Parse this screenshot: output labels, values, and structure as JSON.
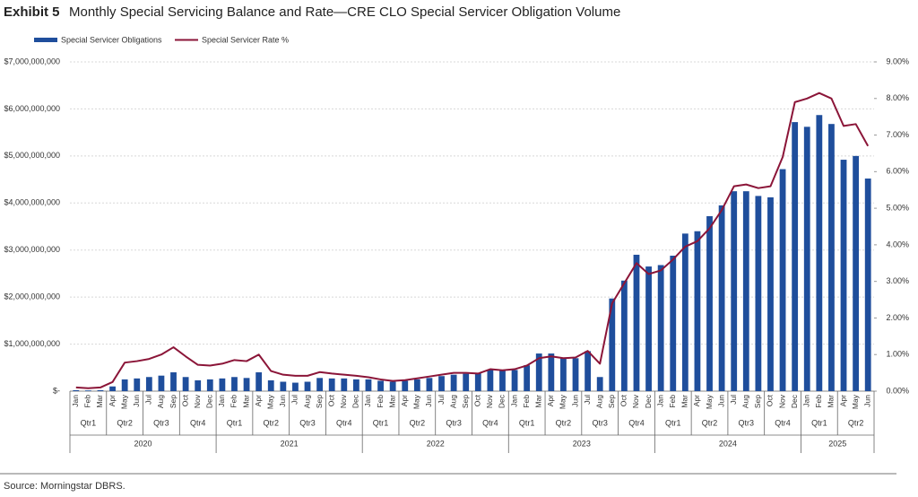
{
  "chart_data": {
    "type": "bar-line",
    "label": "Exhibit 5",
    "title": "Monthly Special Servicing Balance and Rate—CRE CLO Special Servicer Obligation Volume",
    "source": "Source: Morningstar DBRS.",
    "categories": [
      "Jan",
      "Feb",
      "Mar",
      "Apr",
      "May",
      "Jun",
      "Jul",
      "Aug",
      "Sep",
      "Oct",
      "Nov",
      "Dec",
      "Jan",
      "Feb",
      "Mar",
      "Apr",
      "May",
      "Jun",
      "Jul",
      "Aug",
      "Sep",
      "Oct",
      "Nov",
      "Dec",
      "Jan",
      "Feb",
      "Mar",
      "Apr",
      "May",
      "Jun",
      "Jul",
      "Aug",
      "Sep",
      "Oct",
      "Nov",
      "Dec",
      "Jan",
      "Feb",
      "Mar",
      "Apr",
      "May",
      "Jun",
      "Jul",
      "Aug",
      "Sep",
      "Oct",
      "Nov",
      "Dec",
      "Jan",
      "Feb",
      "Mar",
      "Apr",
      "May",
      "Jun",
      "Jul",
      "Aug",
      "Sep",
      "Oct",
      "Nov",
      "Dec",
      "Jan",
      "Feb",
      "Mar",
      "Apr",
      "May",
      "Jun"
    ],
    "groups": [
      {
        "year": "2020",
        "quarters": [
          "Qtr1",
          "Qtr2",
          "Qtr3",
          "Qtr4"
        ]
      },
      {
        "year": "2021",
        "quarters": [
          "Qtr1",
          "Qtr2",
          "Qtr3",
          "Qtr4"
        ]
      },
      {
        "year": "2022",
        "quarters": [
          "Qtr1",
          "Qtr2",
          "Qtr3",
          "Qtr4"
        ]
      },
      {
        "year": "2023",
        "quarters": [
          "Qtr1",
          "Qtr2",
          "Qtr3",
          "Qtr4"
        ]
      },
      {
        "year": "2024",
        "quarters": [
          "Qtr1",
          "Qtr2",
          "Qtr3",
          "Qtr4"
        ]
      },
      {
        "year": "2025",
        "quarters": [
          "Qtr1",
          "Qtr2"
        ]
      }
    ],
    "series": [
      {
        "name": "Special Servicer Obligations",
        "type": "bar",
        "color": "#1f4e9c",
        "values": [
          20000000,
          15000000,
          20000000,
          100000000,
          250000000,
          270000000,
          300000000,
          330000000,
          400000000,
          300000000,
          230000000,
          250000000,
          270000000,
          300000000,
          280000000,
          400000000,
          230000000,
          200000000,
          180000000,
          200000000,
          280000000,
          270000000,
          270000000,
          250000000,
          250000000,
          220000000,
          200000000,
          220000000,
          250000000,
          280000000,
          320000000,
          350000000,
          370000000,
          380000000,
          450000000,
          430000000,
          450000000,
          550000000,
          800000000,
          800000000,
          700000000,
          700000000,
          850000000,
          300000000,
          1970000000,
          2350000000,
          2900000000,
          2650000000,
          2680000000,
          2880000000,
          3350000000,
          3400000000,
          3720000000,
          3950000000,
          4250000000,
          4250000000,
          4150000000,
          4120000000,
          4720000000,
          5720000000,
          5620000000,
          5870000000,
          5680000000,
          4920000000,
          5000000000,
          4520000000
        ]
      },
      {
        "name": "Special Servicer Rate %",
        "type": "line",
        "axis": "y2",
        "color": "#8b1538",
        "values": [
          0.1,
          0.08,
          0.1,
          0.25,
          0.78,
          0.82,
          0.88,
          1.0,
          1.2,
          0.95,
          0.72,
          0.7,
          0.75,
          0.85,
          0.82,
          1.0,
          0.55,
          0.45,
          0.42,
          0.42,
          0.52,
          0.48,
          0.45,
          0.42,
          0.38,
          0.32,
          0.28,
          0.3,
          0.35,
          0.4,
          0.45,
          0.5,
          0.5,
          0.48,
          0.6,
          0.57,
          0.6,
          0.7,
          0.9,
          0.95,
          0.9,
          0.92,
          1.1,
          0.75,
          2.4,
          2.95,
          3.5,
          3.2,
          3.3,
          3.6,
          3.95,
          4.1,
          4.45,
          4.95,
          5.6,
          5.65,
          5.55,
          5.6,
          6.4,
          7.9,
          8.0,
          8.15,
          8.0,
          7.25,
          7.3,
          6.7
        ]
      }
    ],
    "ylim": [
      0,
      7000000000
    ],
    "yticks": [
      {
        "value": 0,
        "label": "$-"
      },
      {
        "value": 1000000000,
        "label": "$1,000,000,000"
      },
      {
        "value": 2000000000,
        "label": "$2,000,000,000"
      },
      {
        "value": 3000000000,
        "label": "$3,000,000,000"
      },
      {
        "value": 4000000000,
        "label": "$4,000,000,000"
      },
      {
        "value": 5000000000,
        "label": "$5,000,000,000"
      },
      {
        "value": 6000000000,
        "label": "$6,000,000,000"
      },
      {
        "value": 7000000000,
        "label": "$7,000,000,000"
      }
    ],
    "y2lim": [
      0,
      9
    ],
    "y2ticks": [
      {
        "value": 0,
        "label": "0.00%"
      },
      {
        "value": 1,
        "label": "1.00%"
      },
      {
        "value": 2,
        "label": "2.00%"
      },
      {
        "value": 3,
        "label": "3.00%"
      },
      {
        "value": 4,
        "label": "4.00%"
      },
      {
        "value": 5,
        "label": "5.00%"
      },
      {
        "value": 6,
        "label": "6.00%"
      },
      {
        "value": 7,
        "label": "7.00%"
      },
      {
        "value": 8,
        "label": "8.00%"
      },
      {
        "value": 9,
        "label": "9.00%"
      }
    ],
    "grid": true
  }
}
